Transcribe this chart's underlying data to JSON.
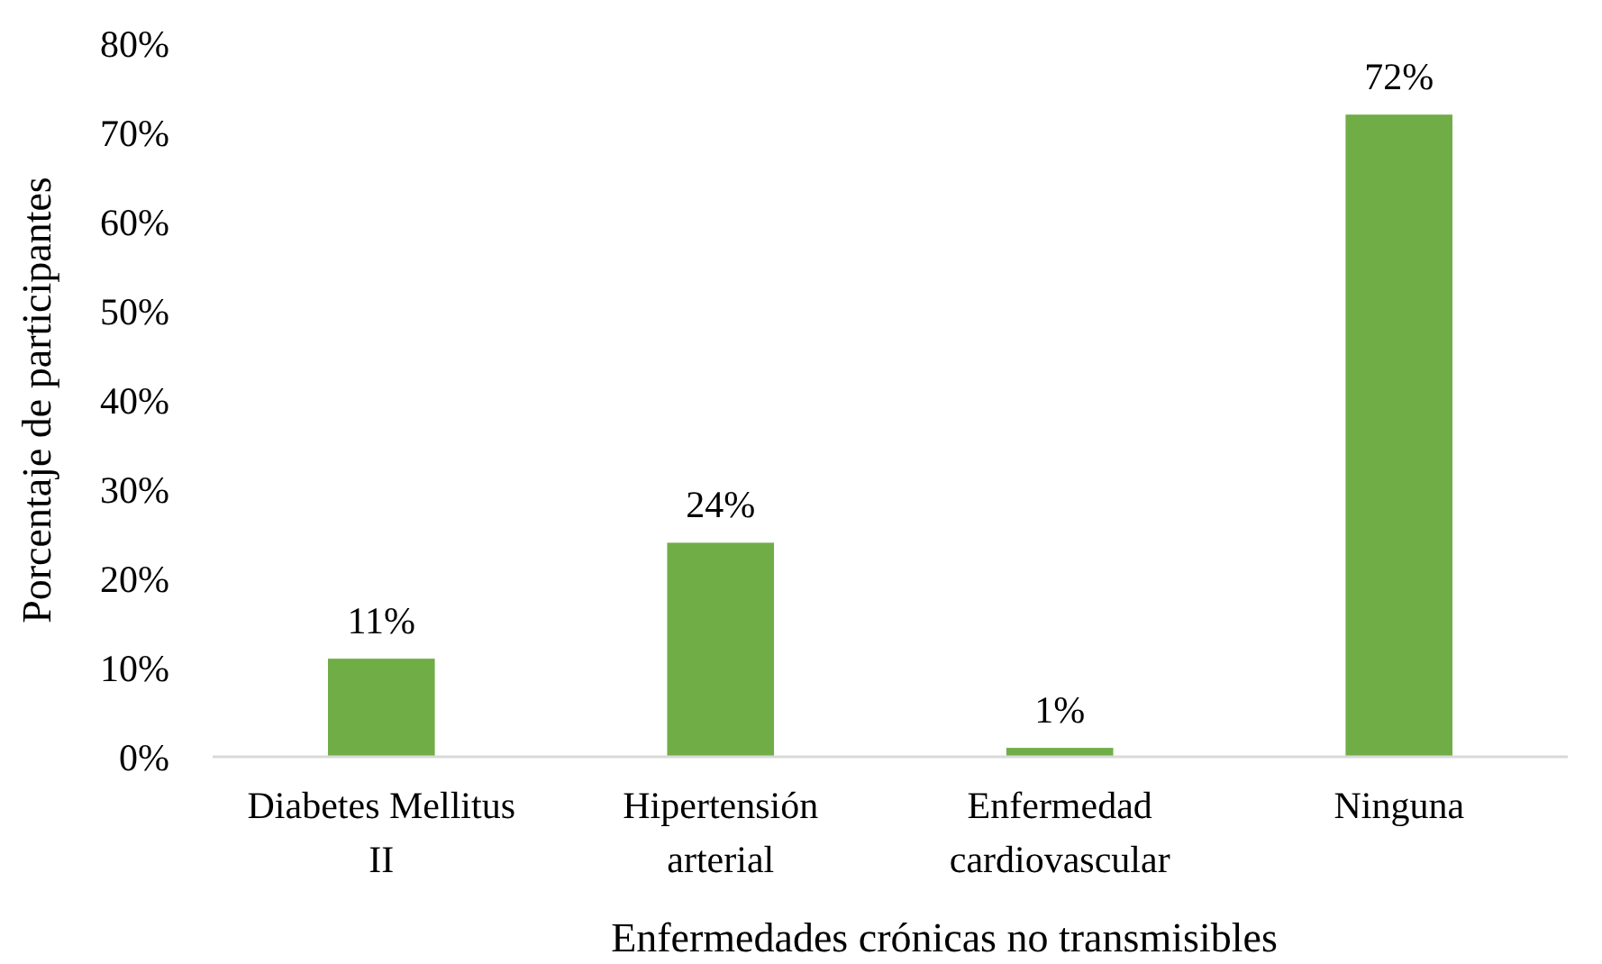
{
  "chart_data": {
    "type": "bar",
    "xlabel": "Enfermedades crónicas no transmisibles",
    "ylabel": "Porcentaje de participantes",
    "categories": [
      "Diabetes Mellitus II",
      "Hipertensión arterial",
      "Enfermedad cardiovascular",
      "Ninguna"
    ],
    "values": [
      11,
      24,
      1,
      72
    ],
    "color": "#70ad47",
    "value_labels": [
      "11%",
      "24%",
      "1%",
      "72%"
    ],
    "ylim": [
      0,
      80
    ],
    "yticks": [
      {
        "value": 0,
        "label": "0%"
      },
      {
        "value": 10,
        "label": "10%"
      },
      {
        "value": 20,
        "label": "20%"
      },
      {
        "value": 30,
        "label": "30%"
      },
      {
        "value": 40,
        "label": "40%"
      },
      {
        "value": 50,
        "label": "50%"
      },
      {
        "value": 60,
        "label": "60%"
      },
      {
        "value": 70,
        "label": "70%"
      },
      {
        "value": 80,
        "label": "80%"
      }
    ],
    "grid": false
  }
}
